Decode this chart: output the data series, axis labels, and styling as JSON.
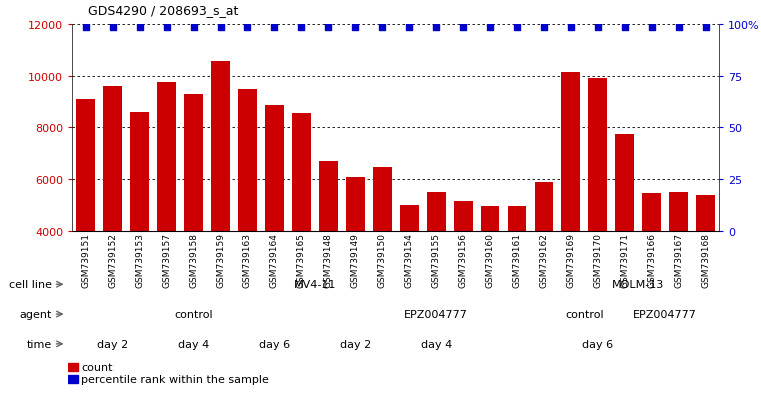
{
  "title": "GDS4290 / 208693_s_at",
  "samples": [
    "GSM739151",
    "GSM739152",
    "GSM739153",
    "GSM739157",
    "GSM739158",
    "GSM739159",
    "GSM739163",
    "GSM739164",
    "GSM739165",
    "GSM739148",
    "GSM739149",
    "GSM739150",
    "GSM739154",
    "GSM739155",
    "GSM739156",
    "GSM739160",
    "GSM739161",
    "GSM739162",
    "GSM739169",
    "GSM739170",
    "GSM739171",
    "GSM739166",
    "GSM739167",
    "GSM739168"
  ],
  "counts": [
    9100,
    9600,
    8600,
    9750,
    9300,
    10550,
    9500,
    8850,
    8550,
    6700,
    6100,
    6450,
    5000,
    5500,
    5150,
    4950,
    4950,
    5900,
    10150,
    9900,
    7750,
    5450,
    5500,
    5400
  ],
  "bar_color": "#cc0000",
  "dot_color": "#0000cc",
  "ylim_left": [
    4000,
    12000
  ],
  "ylim_right": [
    0,
    100
  ],
  "yticks_left": [
    4000,
    6000,
    8000,
    10000,
    12000
  ],
  "yticks_right": [
    0,
    25,
    50,
    75,
    100
  ],
  "yticklabels_right": [
    "0",
    "25",
    "50",
    "75",
    "100%"
  ],
  "background_color": "#ffffff",
  "cell_line_row": {
    "label": "cell line",
    "groups": [
      {
        "text": "MV4-11",
        "start": 0,
        "end": 18,
        "color": "#aaddaa"
      },
      {
        "text": "MOLM-13",
        "start": 18,
        "end": 24,
        "color": "#44cc44"
      }
    ]
  },
  "agent_row": {
    "label": "agent",
    "groups": [
      {
        "text": "control",
        "start": 0,
        "end": 9,
        "color": "#c0b4e8"
      },
      {
        "text": "EPZ004777",
        "start": 9,
        "end": 18,
        "color": "#8070cc"
      },
      {
        "text": "control",
        "start": 18,
        "end": 20,
        "color": "#c0b4e8"
      },
      {
        "text": "EPZ004777",
        "start": 20,
        "end": 24,
        "color": "#8070cc"
      }
    ]
  },
  "time_row": {
    "label": "time",
    "groups": [
      {
        "text": "day 2",
        "start": 0,
        "end": 3,
        "color": "#ffcccc"
      },
      {
        "text": "day 4",
        "start": 3,
        "end": 6,
        "color": "#dd9999"
      },
      {
        "text": "day 6",
        "start": 6,
        "end": 9,
        "color": "#cc7777"
      },
      {
        "text": "day 2",
        "start": 9,
        "end": 12,
        "color": "#ffcccc"
      },
      {
        "text": "day 4",
        "start": 12,
        "end": 15,
        "color": "#dd9999"
      },
      {
        "text": "day 6",
        "start": 15,
        "end": 24,
        "color": "#cc7777"
      }
    ]
  },
  "legend_items": [
    {
      "label": "count",
      "color": "#cc0000"
    },
    {
      "label": "percentile rank within the sample",
      "color": "#0000cc"
    }
  ]
}
